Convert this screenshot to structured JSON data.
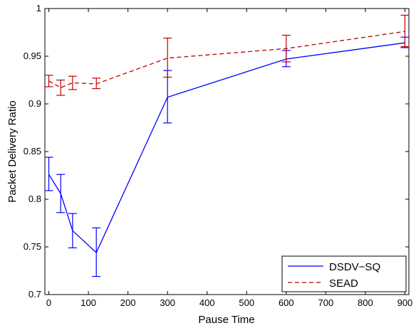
{
  "chart_data": {
    "type": "line",
    "title": "",
    "xlabel": "Pause Time",
    "ylabel": "Packet Delivery Ratio",
    "xlim": [
      -10,
      910
    ],
    "ylim": [
      0.7,
      1.0
    ],
    "x_ticks": [
      0,
      100,
      200,
      300,
      400,
      500,
      600,
      700,
      800,
      900
    ],
    "y_ticks": [
      0.7,
      0.75,
      0.8,
      0.85,
      0.9,
      0.95,
      1.0
    ],
    "y_tick_labels": [
      "0.7",
      "0.75",
      "0.8",
      "0.85",
      "0.9",
      "0.95",
      "1"
    ],
    "grid": false,
    "legend_position": "bottom-right",
    "series": [
      {
        "name": "DSDV−SQ",
        "color": "#0000ff",
        "style": "solid",
        "x": [
          0,
          30,
          60,
          120,
          300,
          600,
          900
        ],
        "y": [
          0.826,
          0.806,
          0.767,
          0.744,
          0.907,
          0.947,
          0.964
        ],
        "err_low": [
          0.809,
          0.786,
          0.749,
          0.719,
          0.88,
          0.939,
          0.959
        ],
        "err_high": [
          0.844,
          0.826,
          0.785,
          0.77,
          0.935,
          0.956,
          0.97
        ]
      },
      {
        "name": "SEAD",
        "color": "#c00000",
        "style": "dashed",
        "x": [
          0,
          30,
          60,
          120,
          300,
          600,
          900
        ],
        "y": [
          0.924,
          0.917,
          0.922,
          0.921,
          0.948,
          0.958,
          0.976
        ],
        "err_low": [
          0.918,
          0.909,
          0.915,
          0.916,
          0.928,
          0.944,
          0.96
        ],
        "err_high": [
          0.93,
          0.925,
          0.929,
          0.927,
          0.969,
          0.972,
          0.993
        ]
      }
    ]
  }
}
